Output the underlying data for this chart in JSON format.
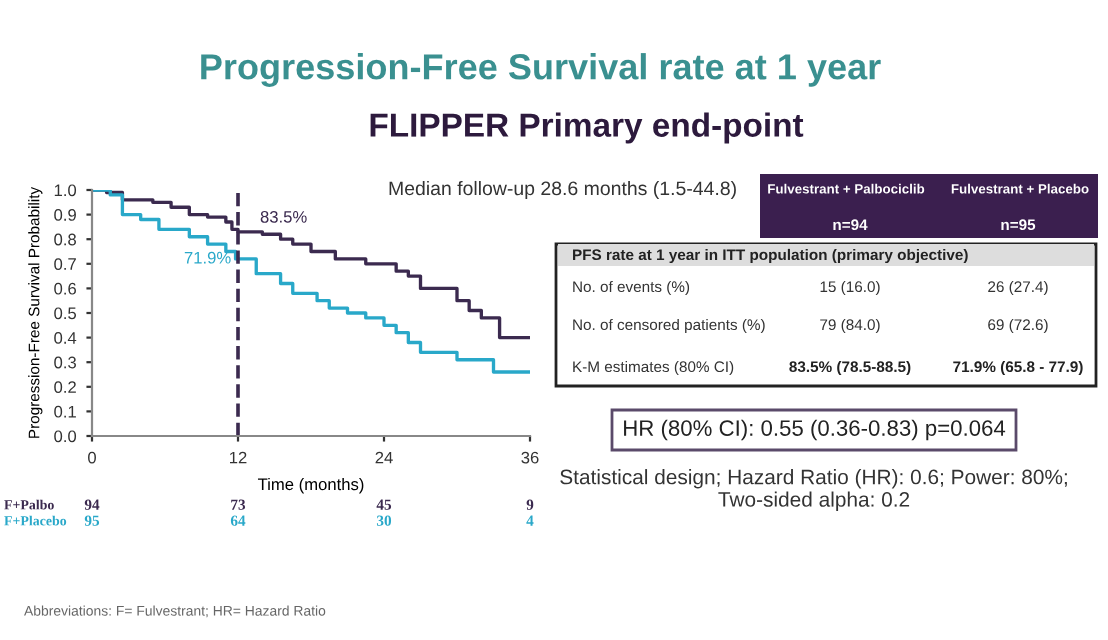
{
  "chart_data": {
    "type": "step",
    "title": "Progression-Free Survival rate at 1 year",
    "subtitle": "FLIPPER Primary end-point",
    "xlabel": "Time (months)",
    "ylabel": "Progression-Free Survival Probability",
    "xlim": [
      0,
      36
    ],
    "xticks": [
      0,
      12,
      24,
      36
    ],
    "ylim": [
      0,
      1.0
    ],
    "yticks": [
      {
        "value": 0,
        "label": "0.0"
      },
      0.1,
      0.2,
      0.3,
      0.4,
      0.5,
      0.6,
      0.7,
      0.8,
      0.9,
      {
        "value": 1.0,
        "label": "1.0"
      }
    ],
    "grid": false,
    "legend": false,
    "marker": "none",
    "line_style": "solid",
    "series": [
      {
        "name": "F+Palbo",
        "color": "#3b2a4f",
        "x": [
          0,
          1.2,
          2.5,
          5,
          6.5,
          8,
          9.5,
          11,
          11.5,
          12,
          14,
          15.5,
          16.5,
          18,
          20,
          22.5,
          25,
          26,
          27,
          30,
          31,
          32,
          33.5,
          36
        ],
        "values": [
          1.0,
          0.99,
          0.96,
          0.95,
          0.93,
          0.9,
          0.89,
          0.87,
          0.84,
          0.83,
          0.82,
          0.8,
          0.78,
          0.75,
          0.72,
          0.7,
          0.67,
          0.65,
          0.6,
          0.55,
          0.51,
          0.48,
          0.4,
          0.4
        ]
      },
      {
        "name": "F+Placebo",
        "color": "#29a8c9",
        "x": [
          0,
          1.5,
          2.5,
          4,
          5.5,
          8,
          9.5,
          11,
          11.8,
          13.5,
          15.5,
          16.5,
          18.5,
          19.5,
          21,
          22.5,
          24,
          25,
          26,
          27,
          30,
          33,
          36
        ],
        "values": [
          1.0,
          0.98,
          0.9,
          0.88,
          0.84,
          0.81,
          0.78,
          0.75,
          0.72,
          0.66,
          0.62,
          0.58,
          0.55,
          0.52,
          0.5,
          0.48,
          0.45,
          0.42,
          0.38,
          0.34,
          0.31,
          0.26,
          0.26
        ]
      }
    ],
    "ref_lines": [
      {
        "axis": "x",
        "value": 12,
        "color": "#3b2a4f",
        "line_style": "dashed"
      }
    ],
    "annotations": [
      "Median follow-up 28.6 months (1.5-44.8)",
      "Fulvestrant + Palbociclib",
      "Fulvestrant + Placebo",
      "n=94",
      "n=95",
      "PFS rate at 1 year in ITT population (primary objective)",
      "No. of events (%)",
      "15 (16.0)",
      "26 (27.4)",
      "No. of censored patients (%)",
      "79 (84.0)",
      "69 (72.6)",
      "K-M estimates (80% CI)",
      "83.5% (78.5-88.5)",
      "71.9% (65.8 - 77.9)",
      "HR (80% CI): 0.55 (0.36-0.83) p=0.064",
      "Statistical design; Hazard Ratio (HR): 0.6; Power: 80%; Two-sided alpha: 0.2",
      "94",
      "73",
      "45",
      "9",
      "95",
      "64",
      "30",
      "4",
      "Abbreviations: F= Fulvestrant; HR= Hazard Ratio",
      {
        "text": "83.5%",
        "x": 12,
        "y": 0.835
      },
      {
        "text": "71.9%",
        "x": 12,
        "y": 0.719
      }
    ]
  }
}
